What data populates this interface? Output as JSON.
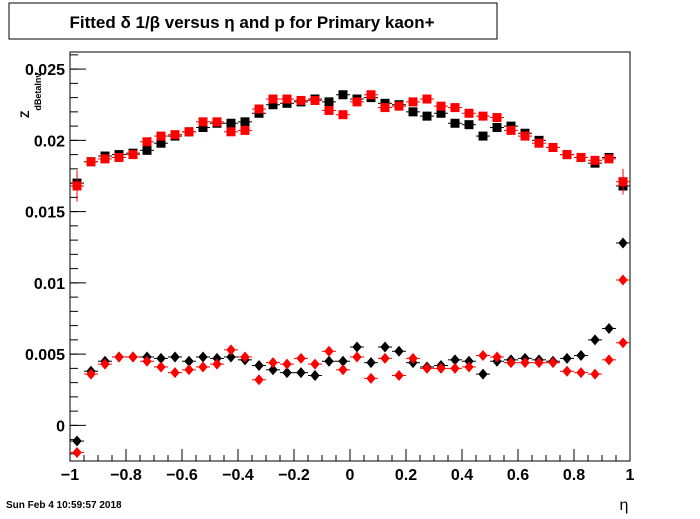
{
  "chart_data": {
    "type": "scatter",
    "title": "Fitted δ 1/β versus η and p for Primary kaon+",
    "xlabel": "η",
    "ylabel": "Z_dBetaInv",
    "ylabel_main": "Z",
    "ylabel_sub": "dBetaInv",
    "xlim": [
      -1.0,
      1.0
    ],
    "ylim": [
      -0.0025,
      0.0262
    ],
    "xticks": [
      -1.0,
      -0.8,
      -0.6,
      -0.4,
      -0.2,
      0.0,
      0.2,
      0.4,
      0.6,
      0.8,
      1.0
    ],
    "xtick_labels": [
      "−1",
      "−0.8",
      "−0.6",
      "−0.4",
      "−0.2",
      "0",
      "0.2",
      "0.4",
      "0.6",
      "0.8",
      "1"
    ],
    "yticks": [
      0.0,
      0.005,
      0.01,
      0.015,
      0.02,
      0.025
    ],
    "ytick_labels": [
      "0",
      "0.005",
      "0.01",
      "0.015",
      "0.02",
      "0.025"
    ],
    "grid": false,
    "x": [
      -0.975,
      -0.925,
      -0.875,
      -0.825,
      -0.775,
      -0.725,
      -0.675,
      -0.625,
      -0.575,
      -0.525,
      -0.475,
      -0.425,
      -0.375,
      -0.325,
      -0.275,
      -0.225,
      -0.175,
      -0.125,
      -0.075,
      -0.025,
      0.025,
      0.075,
      0.125,
      0.175,
      0.225,
      0.275,
      0.325,
      0.375,
      0.425,
      0.475,
      0.525,
      0.575,
      0.625,
      0.675,
      0.725,
      0.775,
      0.825,
      0.875,
      0.925,
      0.975
    ],
    "series": [
      {
        "marker": "square",
        "color": "#000000",
        "values": [
          0.017,
          0.0185,
          0.0189,
          0.019,
          0.0191,
          0.0193,
          0.0198,
          0.0203,
          0.0206,
          0.0209,
          0.0212,
          0.0212,
          0.0213,
          0.0219,
          0.0225,
          0.0226,
          0.0227,
          0.0229,
          0.0227,
          0.0232,
          0.0229,
          0.023,
          0.0226,
          0.0225,
          0.022,
          0.0217,
          0.0219,
          0.0212,
          0.0211,
          0.0203,
          0.0209,
          0.021,
          0.0205,
          0.02,
          0.0195,
          0.019,
          0.0188,
          0.0184,
          0.0188,
          0.0168
        ],
        "errors": [
          0.0003,
          0.0002,
          0.0002,
          0.0002,
          0.0002,
          0.0002,
          0.0002,
          0.0002,
          0.0002,
          0.0002,
          0.0002,
          0.0002,
          0.0002,
          0.0002,
          0.0002,
          0.0002,
          0.0002,
          0.0002,
          0.0002,
          0.0002,
          0.0002,
          0.0002,
          0.0002,
          0.0002,
          0.0002,
          0.0002,
          0.0002,
          0.0002,
          0.0002,
          0.0002,
          0.0002,
          0.0002,
          0.0002,
          0.0002,
          0.0002,
          0.0002,
          0.0002,
          0.0002,
          0.0002,
          0.0006
        ]
      },
      {
        "marker": "square",
        "color": "#ff0000",
        "values": [
          0.0168,
          0.0185,
          0.0187,
          0.0188,
          0.019,
          0.0199,
          0.0203,
          0.0204,
          0.0206,
          0.0213,
          0.0213,
          0.0206,
          0.0207,
          0.0222,
          0.0229,
          0.0229,
          0.0228,
          0.0228,
          0.0221,
          0.0218,
          0.0227,
          0.0232,
          0.0223,
          0.0224,
          0.0227,
          0.0229,
          0.0224,
          0.0223,
          0.0219,
          0.0217,
          0.0216,
          0.0207,
          0.0203,
          0.0198,
          0.0195,
          0.019,
          0.0188,
          0.0186,
          0.0187,
          0.0171
        ],
        "errors": [
          0.0011,
          0.0002,
          0.0002,
          0.0002,
          0.0002,
          0.0002,
          0.0002,
          0.0002,
          0.0002,
          0.0002,
          0.0002,
          0.0002,
          0.0002,
          0.0002,
          0.0002,
          0.0002,
          0.0002,
          0.0002,
          0.0002,
          0.0002,
          0.0002,
          0.0002,
          0.0002,
          0.0002,
          0.0002,
          0.0002,
          0.0002,
          0.0002,
          0.0002,
          0.0002,
          0.0002,
          0.0002,
          0.0002,
          0.0002,
          0.0002,
          0.0002,
          0.0002,
          0.0002,
          0.0002,
          0.0009
        ]
      },
      {
        "marker": "diamond",
        "color": "#000000",
        "values": [
          -0.0011,
          0.0038,
          0.0045,
          0.0048,
          0.0048,
          0.0048,
          0.0047,
          0.0048,
          0.0045,
          0.0048,
          0.0047,
          0.0048,
          0.0046,
          0.0042,
          0.0039,
          0.0037,
          0.0037,
          0.0035,
          0.0045,
          0.0045,
          0.0055,
          0.0044,
          0.0055,
          0.0052,
          0.0044,
          0.0041,
          0.0042,
          0.0046,
          0.0045,
          0.0036,
          0.0045,
          0.0046,
          0.0047,
          0.0046,
          0.0045,
          0.0047,
          0.0049,
          0.006,
          0.0068,
          0.0128
        ]
      },
      {
        "marker": "diamond",
        "color": "#ff0000",
        "values": [
          -0.0019,
          0.0036,
          0.0043,
          0.0048,
          0.0048,
          0.0045,
          0.0041,
          0.0037,
          0.0039,
          0.0041,
          0.0043,
          0.0053,
          0.0048,
          0.0032,
          0.0044,
          0.0043,
          0.0047,
          0.0043,
          0.0052,
          0.0039,
          0.0048,
          0.0033,
          0.0047,
          0.0035,
          0.0047,
          0.004,
          0.004,
          0.004,
          0.0041,
          0.0049,
          0.0048,
          0.0044,
          0.0044,
          0.0044,
          0.0044,
          0.0038,
          0.0037,
          0.0036,
          0.0046,
          0.0058
        ]
      },
      {
        "marker": "diamond",
        "color": "#ff0000",
        "values": [
          null,
          null,
          null,
          null,
          null,
          null,
          null,
          null,
          null,
          null,
          null,
          null,
          null,
          null,
          null,
          null,
          null,
          null,
          null,
          null,
          null,
          null,
          null,
          null,
          null,
          null,
          null,
          null,
          null,
          null,
          null,
          null,
          null,
          null,
          null,
          null,
          null,
          null,
          null,
          0.0102
        ]
      }
    ]
  },
  "timestamp": "Sun Feb  4 10:59:57 2018"
}
